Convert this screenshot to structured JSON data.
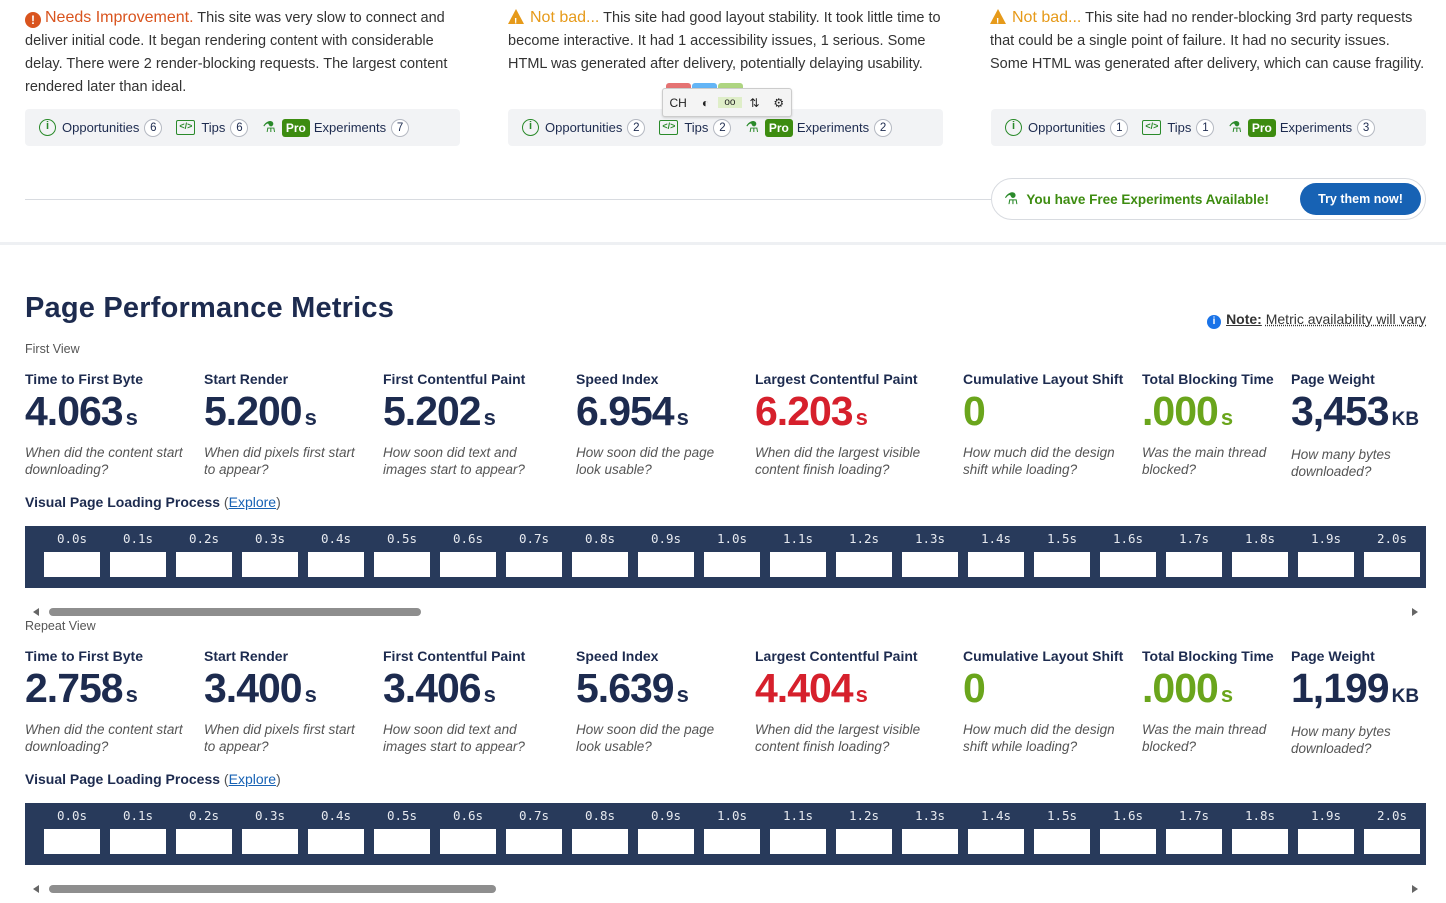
{
  "cards": [
    {
      "grade": "Needs Improvement.",
      "text": "This site was very slow to connect and deliver initial code. It began rendering content with considerable delay. There were 2 render-blocking requests. The largest content rendered later than ideal.",
      "opportunities": "6",
      "tips": "6",
      "experiments": "7"
    },
    {
      "grade": "Not bad...",
      "text": "This site had good layout stability. It took little time to become interactive. It had 1 accessibility issues, 1 serious. Some HTML was generated after delivery, potentially delaying usability.",
      "opportunities": "2",
      "tips": "2",
      "experiments": "2"
    },
    {
      "grade": "Not bad...",
      "text": "This site had no render-blocking 3rd party requests that could be a single point of failure. It had no security issues. Some HTML was generated after delivery, which can cause fragility.",
      "opportunities": "1",
      "tips": "1",
      "experiments": "3"
    }
  ],
  "tab_labels": {
    "opportunities": "Opportunities",
    "tips": "Tips",
    "pro": "Pro",
    "experiments": "Experiments"
  },
  "toolbar": {
    "ch": "CH",
    "colors": [
      "#e57373",
      "#64b5f6",
      "#aed581",
      "#aed581"
    ]
  },
  "free_experiments": {
    "text": "You have Free Experiments Available!",
    "button": "Try them now!"
  },
  "metrics_section": {
    "title": "Page Performance Metrics",
    "note_label": "Note:",
    "note_text": "Metric availability will vary"
  },
  "metric_names": [
    "Time to First Byte",
    "Start Render",
    "First Contentful Paint",
    "Speed Index",
    "Largest Contentful Paint",
    "Cumulative Layout Shift",
    "Total Blocking Time",
    "Page Weight"
  ],
  "metric_descs": [
    "When did the content start downloading?",
    "When did pixels first start to appear?",
    "How soon did text and images start to appear?",
    "How soon did the page look usable?",
    "When did the largest visible content finish loading?",
    "How much did the design shift while loading?",
    "Was the main thread blocked?",
    "How many bytes downloaded?"
  ],
  "first_view": {
    "label": "First View",
    "values": [
      "4.063",
      "5.200",
      "5.202",
      "6.954",
      "6.203",
      "0",
      ".000",
      "3,453"
    ],
    "units": [
      "s",
      "s",
      "s",
      "s",
      "s",
      "",
      "s",
      "KB"
    ],
    "colors": [
      "blue",
      "blue",
      "blue",
      "blue",
      "red",
      "green",
      "green",
      "blue"
    ]
  },
  "repeat_view": {
    "label": "Repeat View",
    "values": [
      "2.758",
      "3.400",
      "3.406",
      "5.639",
      "4.404",
      "0",
      ".000",
      "1,199"
    ],
    "units": [
      "s",
      "s",
      "s",
      "s",
      "s",
      "",
      "s",
      "KB"
    ],
    "colors": [
      "blue",
      "blue",
      "blue",
      "blue",
      "red",
      "green",
      "green",
      "blue"
    ]
  },
  "visual_loading": {
    "title": "Visual Page Loading Process",
    "explore": "Explore",
    "frames": [
      "0.0s",
      "0.1s",
      "0.2s",
      "0.3s",
      "0.4s",
      "0.5s",
      "0.6s",
      "0.7s",
      "0.8s",
      "0.9s",
      "1.0s",
      "1.1s",
      "1.2s",
      "1.3s",
      "1.4s",
      "1.5s",
      "1.6s",
      "1.7s",
      "1.8s",
      "1.9s",
      "2.0s"
    ]
  }
}
